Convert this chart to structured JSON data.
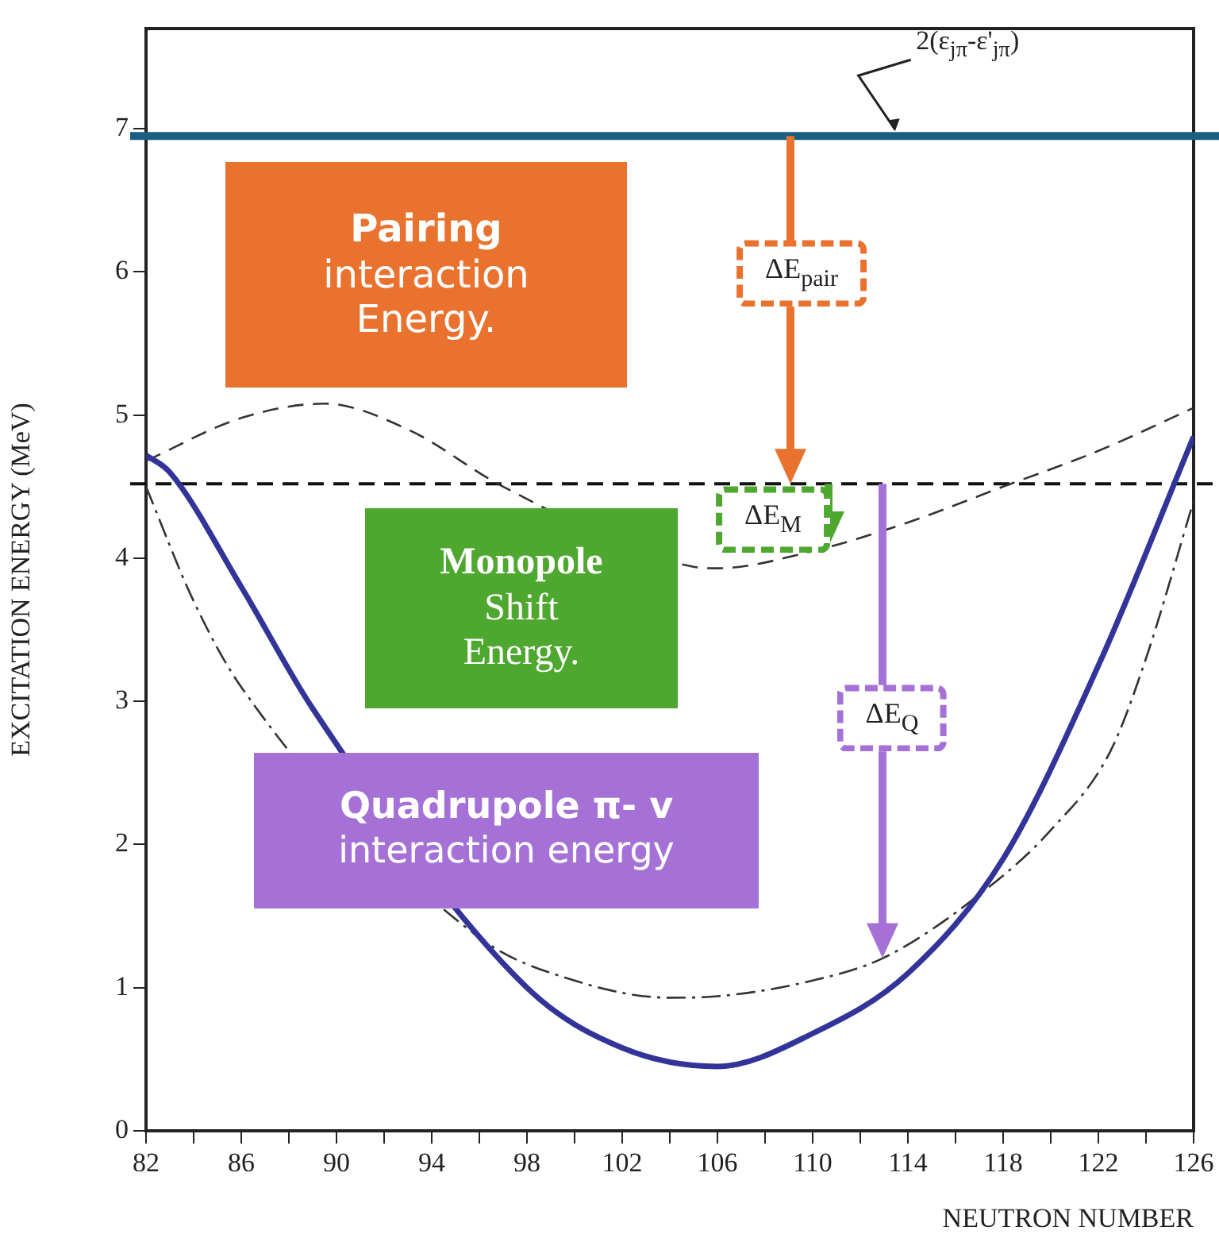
{
  "chart_data": {
    "type": "line",
    "xlabel": "NEUTRON NUMBER",
    "ylabel": "EXCITATION ENERGY (MeV)",
    "xlim": [
      82,
      126
    ],
    "ylim": [
      0,
      7.7
    ],
    "xticks": [
      82,
      {
        "value": 84,
        "label": null
      },
      86,
      {
        "value": 88,
        "label": null
      },
      90,
      {
        "value": 92,
        "label": null
      },
      94,
      {
        "value": 96,
        "label": null
      },
      98,
      {
        "value": 100,
        "label": null
      },
      102,
      {
        "value": 104,
        "label": null
      },
      106,
      {
        "value": 108,
        "label": null
      },
      110,
      {
        "value": 112,
        "label": null
      },
      114,
      {
        "value": 116,
        "label": null
      },
      118,
      {
        "value": 120,
        "label": null
      },
      122,
      {
        "value": 124,
        "label": null
      },
      126
    ],
    "yticks": [
      0,
      1,
      2,
      3,
      4,
      5,
      6,
      7
    ],
    "grid": false,
    "legend": false,
    "marker": "none",
    "series": [
      {
        "color": "#33349a",
        "line_style": "solid",
        "x": [
          82,
          83,
          86,
          89,
          98,
          102,
          106,
          110,
          114,
          118,
          122,
          126
        ],
        "values": [
          4.72,
          4.6,
          3.8,
          2.95,
          1.0,
          0.58,
          0.45,
          0.68,
          1.1,
          1.9,
          3.25,
          4.85
        ]
      },
      {
        "color": "#333333",
        "line_style": "dashed",
        "x": [
          82,
          86,
          89.5,
          93,
          97,
          105,
          106,
          110,
          114,
          118,
          122,
          126
        ],
        "values": [
          4.68,
          4.98,
          5.08,
          4.9,
          4.5,
          3.94,
          3.93,
          4.05,
          4.25,
          4.5,
          4.75,
          5.05
        ]
      },
      {
        "color": "#333333",
        "line_style": "dotted",
        "x": [
          82,
          84,
          86,
          96,
          100,
          104,
          106,
          110,
          113,
          117,
          120,
          122.5,
          124,
          126
        ],
        "values": [
          4.5,
          3.7,
          3.1,
          1.35,
          1.05,
          0.93,
          0.94,
          1.05,
          1.21,
          1.65,
          2.1,
          2.65,
          3.3,
          4.4
        ]
      }
    ],
    "ref_lines": [
      {
        "axis": "y",
        "value": 4.52,
        "color": "#111111",
        "line_style": "dashed"
      },
      {
        "axis": "y",
        "value": 6.95,
        "color": "#1b5e80",
        "line_style": "solid",
        "label": "2(ε$_{jπ}$-ε'$_{jπ}$)"
      }
    ],
    "annotations": [
      "Pairing\ninteraction\nEnergy.",
      "Monopole\nShift\nEnergy.",
      "Quadrupole π- v\ninteraction energy",
      "ΔE$_{pair}$",
      "ΔE$_{M}$",
      "ΔE$_{Q}$"
    ]
  }
}
